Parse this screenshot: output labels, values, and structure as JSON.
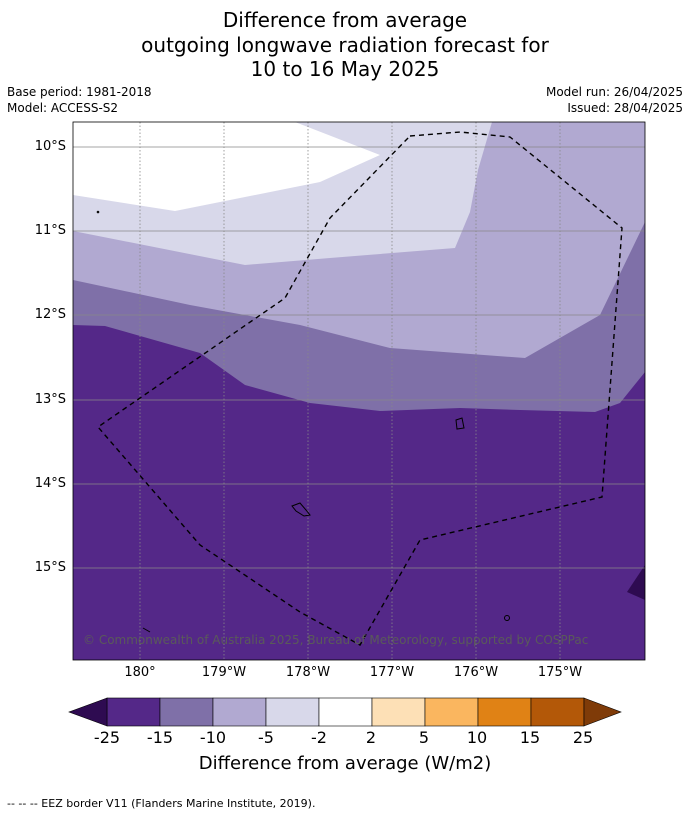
{
  "title": {
    "line1": "Difference from average",
    "line2": "outgoing longwave radiation forecast for",
    "line3": "10 to 16 May 2025"
  },
  "meta": {
    "base_period": "Base period: 1981-2018",
    "model": "Model: ACCESS-S2",
    "model_run": "Model run: 26/04/2025",
    "issued": "Issued: 28/04/2025"
  },
  "map": {
    "lat_labels": [
      "10°S",
      "11°S",
      "12°S",
      "13°S",
      "14°S",
      "15°S"
    ],
    "lon_labels": [
      "180°",
      "179°W",
      "178°W",
      "177°W",
      "176°W",
      "175°W"
    ],
    "copyright": "© Commonwealth of Australia 2025, Bureau of Meteorology, supported by COSPPac",
    "colors": {
      "bin_-15_-10": "#7f70a8",
      "bin_-10_-5": "#b1a9d1",
      "bin_-5_-2": "#d8d8ea",
      "bin_below_-25": "#2e0b51",
      "bin_-25_-15": "#542888"
    }
  },
  "colorbar": {
    "ticks": [
      "-25",
      "-15",
      "-10",
      "-5",
      "-2",
      "2",
      "5",
      "10",
      "15",
      "25"
    ],
    "colors": [
      "#542888",
      "#7f70a8",
      "#b1a9d1",
      "#d8d8ea",
      "#ffffff",
      "#fde0b6",
      "#fab65f",
      "#e08215",
      "#b35808"
    ],
    "under_color": "#2e0b51",
    "over_color": "#7f3b08",
    "label": "Difference from average (W/m2)"
  },
  "footnote": "--  --  -- EEZ border V11 (Flanders Marine Institute, 2019)."
}
